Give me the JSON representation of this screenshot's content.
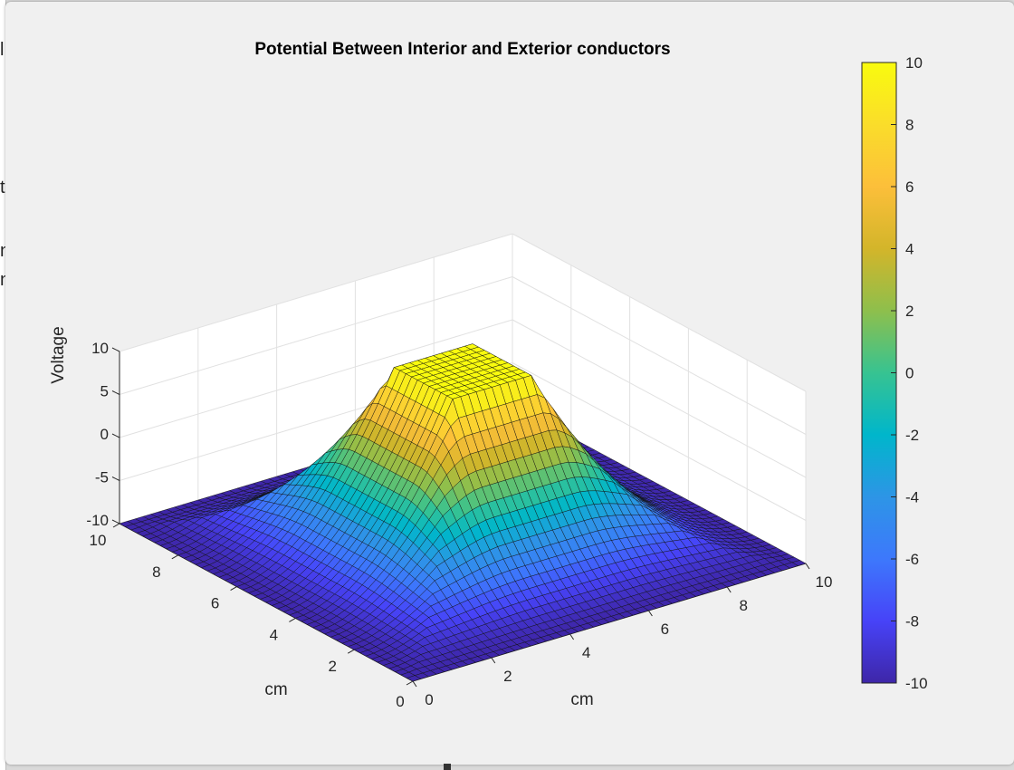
{
  "chart_data": {
    "type": "surface",
    "title": "Potential Between Interior and Exterior conductors",
    "xlabel": "cm",
    "ylabel": "cm",
    "zlabel": "Voltage",
    "xlim": [
      0,
      10
    ],
    "ylim": [
      0,
      10
    ],
    "zlim": [
      -10,
      10
    ],
    "x_ticks": [
      0,
      2,
      4,
      6,
      8,
      10
    ],
    "y_ticks": [
      0,
      2,
      4,
      6,
      8,
      10
    ],
    "z_ticks": [
      -10,
      -5,
      0,
      5,
      10
    ],
    "colorbar": {
      "min": -10,
      "max": 10,
      "ticks": [
        -10,
        -8,
        -6,
        -4,
        -2,
        0,
        2,
        4,
        6,
        8,
        10
      ],
      "colormap": "parula"
    },
    "boundary_conditions": {
      "outer_boundary_voltage": -10,
      "inner_conductor_voltage": 10,
      "inner_conductor_x_range": [
        4,
        6
      ],
      "inner_conductor_y_range": [
        4,
        6
      ]
    },
    "grid": true,
    "colors": {
      "parula_stops": [
        "#3e26a8",
        "#4743f8",
        "#3d78fc",
        "#2d95e6",
        "#00b6cb",
        "#37c391",
        "#8ebf4c",
        "#d3b52a",
        "#fcbf3a",
        "#fadd2a",
        "#f9fb0e"
      ]
    }
  }
}
